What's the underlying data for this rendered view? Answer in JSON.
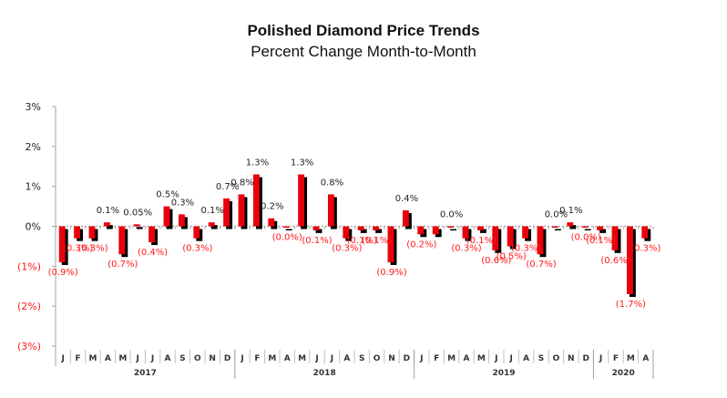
{
  "chart_data": {
    "type": "bar",
    "title": "Polished Diamond Price Trends",
    "subtitle": "Percent Change Month-to-Month",
    "xlabel": "",
    "ylabel": "",
    "ylim": [
      -3,
      3
    ],
    "yticks": [
      3,
      2,
      1,
      0,
      -1,
      -2,
      -3
    ],
    "ytick_labels": [
      "3%",
      "2%",
      "1%",
      "0%",
      "(1%)",
      "(2%)",
      "(3%)"
    ],
    "grid": false,
    "legend": "none",
    "colors": {
      "bar": "#e8000b",
      "shadow": "#000000",
      "positive_label": "#222222",
      "negative_label": "#ff1a1a",
      "axis": "#a0a0a0"
    },
    "years": [
      {
        "label": "2017",
        "months": 12
      },
      {
        "label": "2018",
        "months": 12
      },
      {
        "label": "2019",
        "months": 12
      },
      {
        "label": "2020",
        "months": 4
      }
    ],
    "categories": [
      "J",
      "F",
      "M",
      "A",
      "M",
      "J",
      "J",
      "A",
      "S",
      "O",
      "N",
      "D",
      "J",
      "F",
      "M",
      "A",
      "M",
      "J",
      "J",
      "A",
      "S",
      "O",
      "N",
      "D",
      "J",
      "F",
      "M",
      "A",
      "M",
      "J",
      "J",
      "A",
      "S",
      "O",
      "N",
      "D",
      "J",
      "F",
      "M",
      "A"
    ],
    "values": [
      -0.9,
      -0.3,
      -0.3,
      0.1,
      -0.7,
      0.05,
      -0.4,
      0.5,
      0.3,
      -0.3,
      0.1,
      0.7,
      0.8,
      1.3,
      0.2,
      -0.02,
      1.3,
      -0.1,
      0.8,
      -0.3,
      -0.1,
      -0.1,
      -0.9,
      0.4,
      -0.2,
      -0.2,
      0.0,
      -0.3,
      -0.1,
      -0.6,
      -0.5,
      -0.3,
      -0.7,
      0.0,
      0.1,
      -0.02,
      -0.1,
      -0.6,
      -1.7,
      -0.3
    ],
    "data_labels": [
      "(0.9%)",
      "(0.3%)",
      "(0.3%)",
      "0.1%",
      "(0.7%)",
      "0.05%",
      "(0.4%)",
      "0.5%",
      "0.3%",
      "(0.3%)",
      "0.1%",
      "0.7%",
      "0.8%",
      "1.3%",
      "0.2%",
      "(0.0%)",
      "1.3%",
      "(0.1%)",
      "0.8%",
      "(0.3%)",
      "(0.1%)",
      "(0.1%)",
      "(0.9%)",
      "0.4%",
      "(0.2%)",
      "",
      "0.0%",
      "(0.3%)",
      "(0.1%)",
      "(0.6%)",
      "(0.5%)",
      "(0.3%)",
      "(0.7%)",
      "0.0%",
      "0.1%",
      "(0.0%)",
      "(0.1%)",
      "(0.6%)",
      "(1.7%)",
      "(0.3%)"
    ]
  }
}
